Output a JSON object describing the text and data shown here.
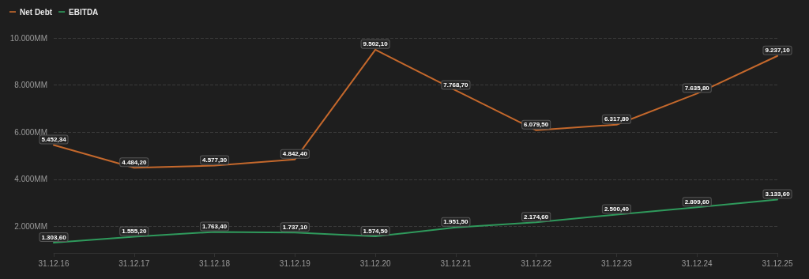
{
  "chart_data": {
    "type": "line",
    "categories": [
      "31.12.16",
      "31.12.17",
      "31.12.18",
      "31.12.19",
      "31.12.20",
      "31.12.21",
      "31.12.22",
      "31.12.23",
      "31.12.24",
      "31.12.25"
    ],
    "series": [
      {
        "name": "Net Debt",
        "color": "#c4682c",
        "values": [
          5452.34,
          4484.2,
          4577.3,
          4842.4,
          9502.1,
          7768.7,
          6079.5,
          6317.8,
          7635.8,
          9237.1
        ],
        "value_labels": [
          "5.452,34",
          "4.484,20",
          "4.577,30",
          "4.842,40",
          "9.502,10",
          "7.768,70",
          "6.079,50",
          "6.317,80",
          "7.635,80",
          "9.237,10"
        ]
      },
      {
        "name": "EBITDA",
        "color": "#2f9a5c",
        "values": [
          1303.6,
          1555.2,
          1763.4,
          1737.1,
          1574.5,
          1951.5,
          2174.6,
          2500.4,
          2809.6,
          3133.6
        ],
        "value_labels": [
          "1.303,60",
          "1.555,20",
          "1.763,40",
          "1.737,10",
          "1.574,50",
          "1.951,50",
          "2.174,60",
          "2.500,40",
          "2.809,60",
          "3.133,60"
        ]
      }
    ],
    "ylim": [
      870,
      10000
    ],
    "yticks": [
      {
        "value": 2000,
        "label": "2.000MM"
      },
      {
        "value": 4000,
        "label": "4.000MM"
      },
      {
        "value": 6000,
        "label": "6.000MM"
      },
      {
        "value": 8000,
        "label": "8.000MM"
      },
      {
        "value": 10000,
        "label": "10.000MM"
      }
    ],
    "grid": "y",
    "legend": "top left",
    "marker": "none",
    "line_style": "solid"
  }
}
